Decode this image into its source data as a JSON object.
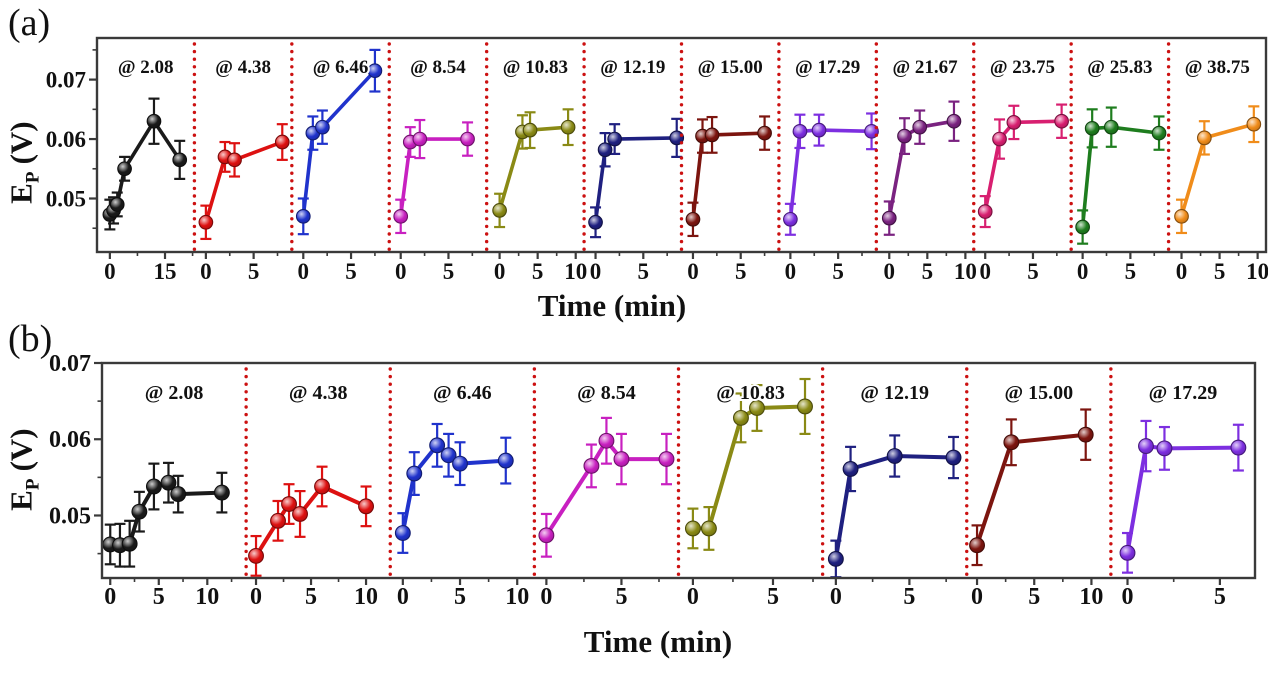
{
  "figure": {
    "xlabel": "Time (min)",
    "ylabel": {
      "main": "E",
      "sub": "P",
      "unit": "(V)"
    },
    "frame_color": "#3a3a3a",
    "separator_color": "#cc1111",
    "background": "#ffffff",
    "text_color": "#111111"
  },
  "chart_data": [
    {
      "panel": "(a)",
      "type": "line",
      "error_bars": true,
      "xlabel": "Time (min)",
      "ylabel": "Ep (V)",
      "ylim": [
        0.041,
        0.077
      ],
      "yticks": [
        0.05,
        0.06,
        0.07
      ],
      "ytick_labels": [
        "0.05",
        "0.06",
        "0.07"
      ],
      "subplots": [
        {
          "label": "@ 2.08",
          "color": "#1a1a1a",
          "xticks": [
            0,
            15
          ],
          "xlim": [
            -3.5,
            23.0
          ],
          "x": [
            0,
            1,
            2,
            4,
            12,
            19
          ],
          "y": [
            0.0473,
            0.048,
            0.049,
            0.055,
            0.063,
            0.0565
          ],
          "yerr": [
            0.0025,
            0.0022,
            0.002,
            0.002,
            0.0038,
            0.0032
          ]
        },
        {
          "label": "@ 4.38",
          "color": "#dd1111",
          "xticks": [
            0,
            5
          ],
          "xlim": [
            -1.2,
            9.0
          ],
          "x": [
            0,
            2,
            3,
            8
          ],
          "y": [
            0.046,
            0.057,
            0.0565,
            0.0595
          ],
          "yerr": [
            0.0028,
            0.0025,
            0.0028,
            0.003
          ]
        },
        {
          "label": "@ 6.46",
          "color": "#2033cc",
          "xticks": [
            0,
            5
          ],
          "xlim": [
            -1.2,
            9.0
          ],
          "x": [
            0,
            1,
            2,
            7.5
          ],
          "y": [
            0.047,
            0.061,
            0.062,
            0.0715
          ],
          "yerr": [
            0.003,
            0.0028,
            0.0028,
            0.0035
          ]
        },
        {
          "label": "@ 8.54",
          "color": "#c820c0",
          "xticks": [
            0,
            5
          ],
          "xlim": [
            -1.2,
            9.0
          ],
          "x": [
            0,
            1,
            2,
            7
          ],
          "y": [
            0.047,
            0.0595,
            0.06,
            0.06
          ],
          "yerr": [
            0.0028,
            0.0025,
            0.0032,
            0.0028
          ]
        },
        {
          "label": "@ 10.83",
          "color": "#8a8a15",
          "xticks": [
            0,
            5,
            10
          ],
          "xlim": [
            -1.7,
            11.1
          ],
          "x": [
            0,
            3,
            4,
            9
          ],
          "y": [
            0.048,
            0.0612,
            0.0615,
            0.062
          ],
          "yerr": [
            0.0028,
            0.0028,
            0.003,
            0.003
          ]
        },
        {
          "label": "@ 12.19",
          "color": "#1f2080",
          "xticks": [
            0,
            5
          ],
          "xlim": [
            -1.2,
            9.0
          ],
          "x": [
            0,
            1,
            2,
            8.5
          ],
          "y": [
            0.046,
            0.0582,
            0.06,
            0.0602
          ],
          "yerr": [
            0.0025,
            0.0028,
            0.0025,
            0.0032
          ]
        },
        {
          "label": "@ 15.00",
          "color": "#7c150f",
          "xticks": [
            0,
            5
          ],
          "xlim": [
            -1.2,
            9.0
          ],
          "x": [
            0,
            1,
            2,
            7.5
          ],
          "y": [
            0.0465,
            0.0605,
            0.0607,
            0.061
          ],
          "yerr": [
            0.0028,
            0.0028,
            0.003,
            0.0028
          ]
        },
        {
          "label": "@ 17.29",
          "color": "#7d2fe0",
          "xticks": [
            0,
            5
          ],
          "xlim": [
            -1.2,
            9.0
          ],
          "x": [
            0,
            1,
            3,
            8.5
          ],
          "y": [
            0.0465,
            0.0613,
            0.0615,
            0.0613
          ],
          "yerr": [
            0.0026,
            0.0028,
            0.0026,
            0.003
          ]
        },
        {
          "label": "@ 21.67",
          "color": "#7a2280",
          "xticks": [
            0,
            5,
            10
          ],
          "xlim": [
            -1.7,
            11.1
          ],
          "x": [
            0,
            2,
            4,
            8.5
          ],
          "y": [
            0.0467,
            0.0605,
            0.062,
            0.063
          ],
          "yerr": [
            0.0028,
            0.003,
            0.0028,
            0.0033
          ]
        },
        {
          "label": "@ 23.75",
          "color": "#d81f70",
          "xticks": [
            0,
            5
          ],
          "xlim": [
            -1.2,
            9.0
          ],
          "x": [
            0,
            1.5,
            3,
            8
          ],
          "y": [
            0.0478,
            0.06,
            0.0628,
            0.063
          ],
          "yerr": [
            0.0026,
            0.0033,
            0.0028,
            0.0028
          ]
        },
        {
          "label": "@ 25.83",
          "color": "#1e7d1e",
          "xticks": [
            0,
            5
          ],
          "xlim": [
            -1.2,
            9.0
          ],
          "x": [
            0,
            1,
            3,
            8
          ],
          "y": [
            0.0452,
            0.0618,
            0.062,
            0.061
          ],
          "yerr": [
            0.0028,
            0.0032,
            0.0033,
            0.0028
          ]
        },
        {
          "label": "@ 38.75",
          "color": "#f08c1a",
          "xticks": [
            0,
            5,
            10
          ],
          "xlim": [
            -1.7,
            11.1
          ],
          "x": [
            0,
            3,
            9.5
          ],
          "y": [
            0.047,
            0.0602,
            0.0625
          ],
          "yerr": [
            0.0028,
            0.0028,
            0.003
          ]
        }
      ]
    },
    {
      "panel": "(b)",
      "type": "line",
      "error_bars": true,
      "xlabel": "Time (min)",
      "ylabel": "Ep (V)",
      "ylim": [
        0.0418,
        0.07
      ],
      "yticks": [
        0.05,
        0.06,
        0.07
      ],
      "ytick_labels": [
        "0.05",
        "0.06",
        "0.07"
      ],
      "subplots": [
        {
          "label": "@ 2.08",
          "color": "#1a1a1a",
          "xticks": [
            0,
            5,
            10
          ],
          "xlim": [
            -0.85,
            14.0
          ],
          "x": [
            0,
            1,
            2,
            3,
            4.5,
            6,
            7,
            11.5
          ],
          "y": [
            0.0462,
            0.0461,
            0.0463,
            0.0505,
            0.0538,
            0.0543,
            0.0528,
            0.053
          ],
          "yerr": [
            0.0026,
            0.0028,
            0.003,
            0.0026,
            0.003,
            0.0026,
            0.0024,
            0.0026
          ]
        },
        {
          "label": "@ 4.38",
          "color": "#dd1111",
          "xticks": [
            0,
            5,
            10
          ],
          "xlim": [
            -0.9,
            12.2
          ],
          "x": [
            0,
            2,
            3,
            4,
            6,
            10
          ],
          "y": [
            0.0447,
            0.0493,
            0.0515,
            0.0502,
            0.0538,
            0.0512
          ],
          "yerr": [
            0.0026,
            0.0026,
            0.0026,
            0.003,
            0.0026,
            0.0026
          ]
        },
        {
          "label": "@ 6.46",
          "color": "#2033cc",
          "xticks": [
            0,
            5,
            10
          ],
          "xlim": [
            -1.1,
            11.5
          ],
          "x": [
            0,
            1,
            3,
            4,
            5,
            9
          ],
          "y": [
            0.0477,
            0.0555,
            0.0592,
            0.0579,
            0.0568,
            0.0572
          ],
          "yerr": [
            0.0026,
            0.0028,
            0.0028,
            0.0028,
            0.0028,
            0.003
          ]
        },
        {
          "label": "@ 8.54",
          "color": "#c820c0",
          "xticks": [
            0,
            5
          ],
          "xlim": [
            -0.8,
            8.8
          ],
          "x": [
            0,
            3,
            4,
            5,
            8
          ],
          "y": [
            0.0474,
            0.0565,
            0.0598,
            0.0574,
            0.0574
          ],
          "yerr": [
            0.0028,
            0.0028,
            0.003,
            0.0033,
            0.0033
          ]
        },
        {
          "label": "@ 10.83",
          "color": "#8a8a15",
          "xticks": [
            0,
            5
          ],
          "xlim": [
            -0.9,
            8.1
          ],
          "x": [
            0,
            1,
            3,
            4,
            7
          ],
          "y": [
            0.0483,
            0.0483,
            0.0628,
            0.0641,
            0.0643
          ],
          "yerr": [
            0.0026,
            0.0028,
            0.0032,
            0.003,
            0.0036
          ]
        },
        {
          "label": "@ 12.19",
          "color": "#1f2080",
          "xticks": [
            0,
            5
          ],
          "xlim": [
            -0.9,
            8.9
          ],
          "x": [
            0,
            1,
            4,
            8
          ],
          "y": [
            0.0443,
            0.0561,
            0.0578,
            0.0576
          ],
          "yerr": [
            0.0024,
            0.0029,
            0.0027,
            0.0027
          ]
        },
        {
          "label": "@ 15.00",
          "color": "#7c150f",
          "xticks": [
            0,
            5,
            10
          ],
          "xlim": [
            -0.9,
            11.7
          ],
          "x": [
            0,
            3,
            9.5
          ],
          "y": [
            0.0461,
            0.0596,
            0.0606
          ],
          "yerr": [
            0.0026,
            0.003,
            0.0033
          ]
        },
        {
          "label": "@ 17.29",
          "color": "#7d2fe0",
          "xticks": [
            0,
            5
          ],
          "xlim": [
            -0.9,
            6.9
          ],
          "x": [
            0,
            1,
            2,
            6
          ],
          "y": [
            0.0451,
            0.0591,
            0.0588,
            0.0589
          ],
          "yerr": [
            0.0026,
            0.0033,
            0.0028,
            0.003
          ]
        }
      ]
    }
  ]
}
